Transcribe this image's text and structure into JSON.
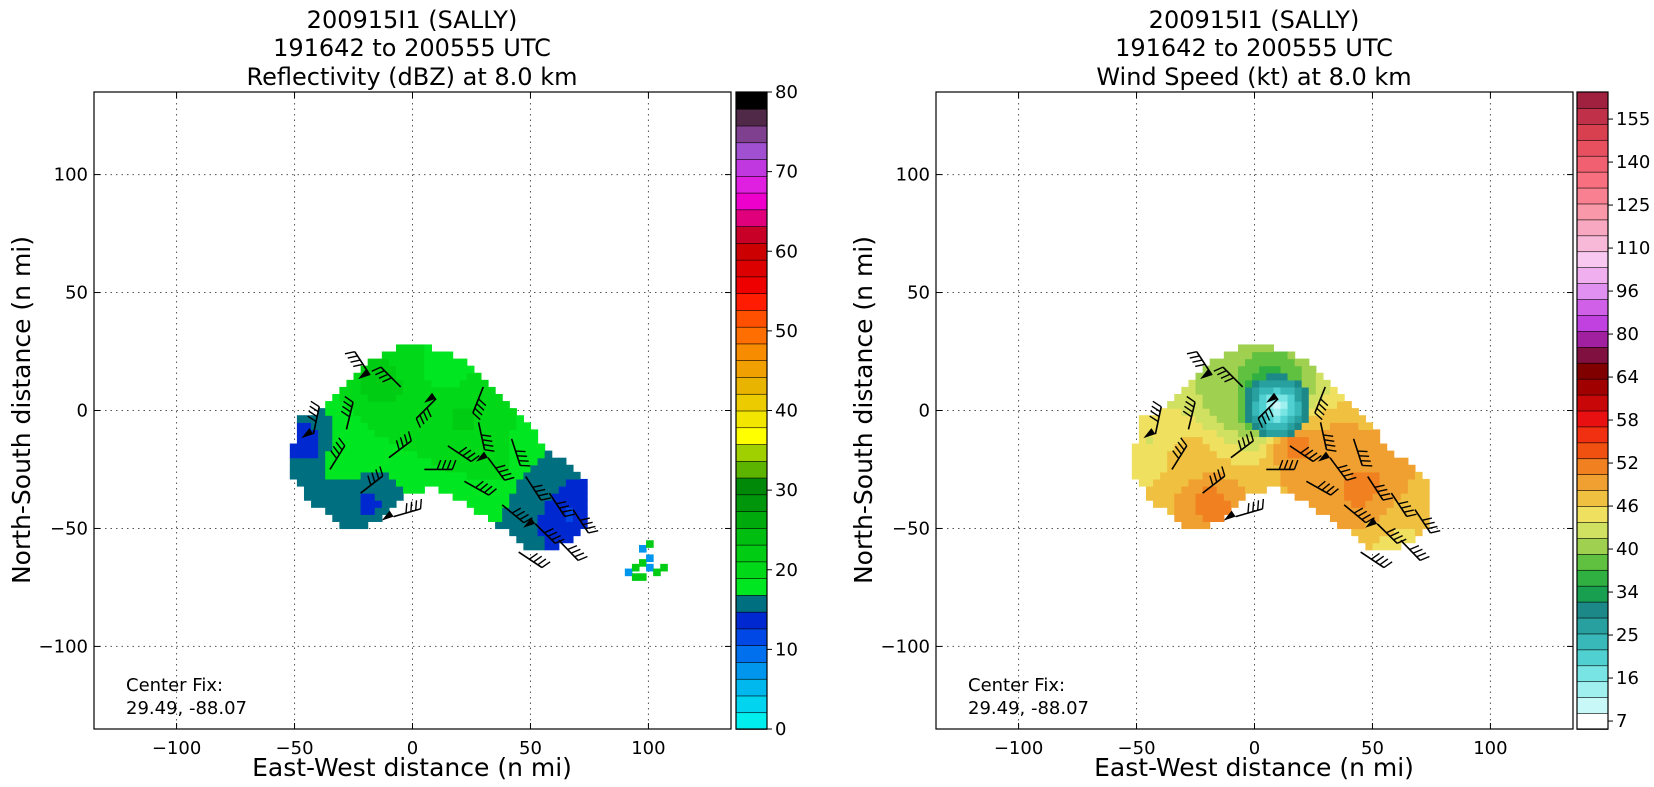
{
  "chart_data": [
    {
      "type": "heatmap",
      "title_lines": [
        "200915I1 (SALLY)",
        "191642 to 200555 UTC",
        "Reflectivity (dBZ) at 8.0 km"
      ],
      "xlabel": "East-West distance (n mi)",
      "ylabel": "North-South distance (n mi)",
      "xlim": [
        -135,
        135
      ],
      "ylim": [
        -135,
        135
      ],
      "xticks": [
        -100,
        -50,
        0,
        50,
        100
      ],
      "yticks": [
        -100,
        -50,
        0,
        50,
        100
      ],
      "grid": true,
      "annotation": [
        "Center Fix:",
        "29.49, -88.07"
      ],
      "colorbar": {
        "range": [
          0,
          80
        ],
        "tick_labels": [
          "0",
          "10",
          "20",
          "30",
          "40",
          "50",
          "60",
          "70",
          "80"
        ],
        "colors": [
          "#00eeee",
          "#00d4ee",
          "#00b8ee",
          "#0096ee",
          "#0070ee",
          "#0048e6",
          "#0028d0",
          "#007080",
          "#00e620",
          "#00d818",
          "#00cc14",
          "#00be10",
          "#00aa0c",
          "#00960c",
          "#008808",
          "#5cb400",
          "#a0d000",
          "#ffff00",
          "#f2e600",
          "#eccc00",
          "#e8b400",
          "#f0a000",
          "#f88c00",
          "#ff6e00",
          "#ff5000",
          "#ff1c00",
          "#ee0000",
          "#dd0000",
          "#cc0000",
          "#c80028",
          "#e0007c",
          "#ee00cc",
          "#e020e0",
          "#c038e0",
          "#a050d0",
          "#804090",
          "#502848",
          "#000000"
        ]
      },
      "field": [
        {
          "x": -45,
          "y": -15,
          "dbz": 12
        },
        {
          "x": -30,
          "y": -20,
          "dbz": 18
        },
        {
          "x": -15,
          "y": 10,
          "dbz": 22
        },
        {
          "x": 0,
          "y": 5,
          "dbz": 20
        },
        {
          "x": 10,
          "y": 15,
          "dbz": 16
        },
        {
          "x": 20,
          "y": -5,
          "dbz": 21
        },
        {
          "x": 35,
          "y": -25,
          "dbz": 19
        },
        {
          "x": 50,
          "y": -35,
          "dbz": 14
        },
        {
          "x": 65,
          "y": -45,
          "dbz": 11
        },
        {
          "x": -20,
          "y": -40,
          "dbz": 13
        },
        {
          "x": 95,
          "y": -68,
          "dbz": 15
        }
      ]
    },
    {
      "type": "heatmap",
      "title_lines": [
        "200915I1 (SALLY)",
        "191642 to 200555 UTC",
        "Wind Speed (kt) at 8.0 km"
      ],
      "xlabel": "East-West distance (n mi)",
      "ylabel": "North-South distance (n mi)",
      "xlim": [
        -135,
        135
      ],
      "ylim": [
        -135,
        135
      ],
      "xticks": [
        -100,
        -50,
        0,
        50,
        100
      ],
      "yticks": [
        -100,
        -50,
        0,
        50,
        100
      ],
      "grid": true,
      "annotation": [
        "Center Fix:",
        "29.49, -88.07"
      ],
      "colorbar": {
        "tick_labels": [
          "7",
          "16",
          "25",
          "34",
          "40",
          "46",
          "52",
          "58",
          "64",
          "80",
          "96",
          "110",
          "125",
          "140",
          "155"
        ],
        "colors": [
          "#ffffff",
          "#c8f8f8",
          "#a0f0f0",
          "#78e4e4",
          "#50d0d0",
          "#38b8b8",
          "#28a0a0",
          "#1c8888",
          "#18a050",
          "#30b040",
          "#60c040",
          "#a0d050",
          "#d0e060",
          "#f0e060",
          "#f0c040",
          "#f0a030",
          "#f08020",
          "#f05010",
          "#f03010",
          "#e81010",
          "#c80808",
          "#a00000",
          "#800000",
          "#801040",
          "#a020a0",
          "#c040e0",
          "#d060e8",
          "#e090f0",
          "#f0b0f0",
          "#f8c8f0",
          "#f8b8d8",
          "#f8a8c0",
          "#f898a8",
          "#f88090",
          "#f87080",
          "#f06070",
          "#e85060",
          "#d84050",
          "#c03048",
          "#a02040"
        ]
      },
      "field": [
        {
          "x": -45,
          "y": -15,
          "kt": 44
        },
        {
          "x": -30,
          "y": -20,
          "kt": 50
        },
        {
          "x": -15,
          "y": 5,
          "kt": 40
        },
        {
          "x": 5,
          "y": 0,
          "kt": 18
        },
        {
          "x": 15,
          "y": -15,
          "kt": 58
        },
        {
          "x": 30,
          "y": -20,
          "kt": 54
        },
        {
          "x": 45,
          "y": -35,
          "kt": 56
        },
        {
          "x": 60,
          "y": -45,
          "kt": 50
        },
        {
          "x": 60,
          "y": -60,
          "kt": 44
        },
        {
          "x": -20,
          "y": -40,
          "kt": 56
        }
      ]
    }
  ],
  "wind_barbs": [
    {
      "x": -42,
      "y": -10
    },
    {
      "x": -35,
      "y": -25
    },
    {
      "x": -28,
      "y": -8
    },
    {
      "x": -22,
      "y": -35
    },
    {
      "x": -18,
      "y": 15
    },
    {
      "x": -10,
      "y": -20
    },
    {
      "x": -5,
      "y": 10
    },
    {
      "x": 5,
      "y": -25
    },
    {
      "x": 10,
      "y": 5
    },
    {
      "x": 15,
      "y": -15
    },
    {
      "x": 22,
      "y": -30
    },
    {
      "x": 28,
      "y": -5
    },
    {
      "x": 32,
      "y": -20
    },
    {
      "x": 38,
      "y": -40
    },
    {
      "x": 42,
      "y": -12
    },
    {
      "x": 48,
      "y": -28
    },
    {
      "x": 52,
      "y": -48
    },
    {
      "x": 58,
      "y": -35
    },
    {
      "x": 62,
      "y": -55
    },
    {
      "x": 68,
      "y": -42
    },
    {
      "x": -8,
      "y": -45
    },
    {
      "x": 30,
      "y": 10
    },
    {
      "x": 45,
      "y": -60
    }
  ]
}
